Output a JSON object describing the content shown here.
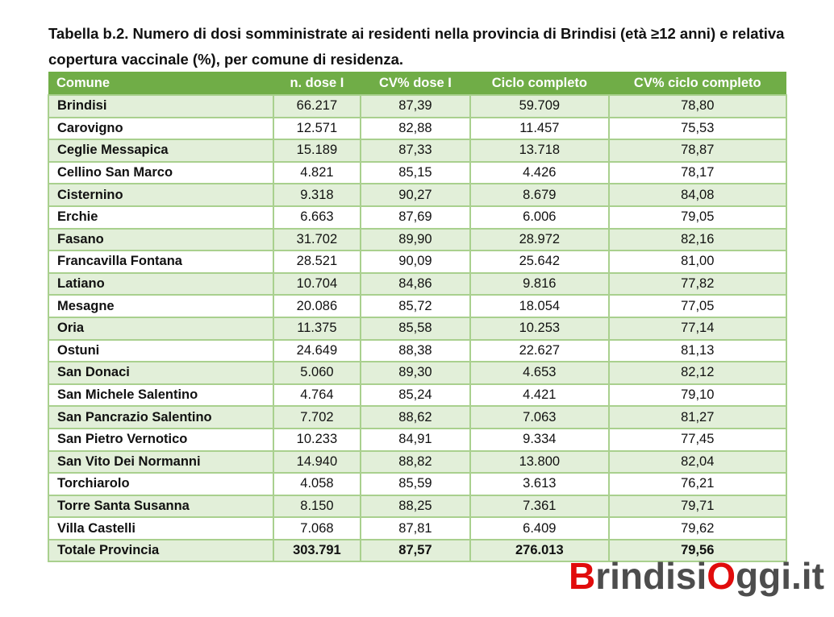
{
  "title": "Tabella b.2. Numero di dosi somministrate ai residenti nella provincia di Brindisi (età ≥12 anni) e relativa copertura vaccinale (%), per comune di residenza.",
  "headers": [
    "Comune",
    "n. dose I",
    "CV% dose I",
    "Ciclo completo",
    "CV% ciclo completo"
  ],
  "rows": [
    [
      "Brindisi",
      "66.217",
      "87,39",
      "59.709",
      "78,80"
    ],
    [
      "Carovigno",
      "12.571",
      "82,88",
      "11.457",
      "75,53"
    ],
    [
      "Ceglie Messapica",
      "15.189",
      "87,33",
      "13.718",
      "78,87"
    ],
    [
      "Cellino San Marco",
      "4.821",
      "85,15",
      "4.426",
      "78,17"
    ],
    [
      "Cisternino",
      "9.318",
      "90,27",
      "8.679",
      "84,08"
    ],
    [
      "Erchie",
      "6.663",
      "87,69",
      "6.006",
      "79,05"
    ],
    [
      "Fasano",
      "31.702",
      "89,90",
      "28.972",
      "82,16"
    ],
    [
      "Francavilla Fontana",
      "28.521",
      "90,09",
      "25.642",
      "81,00"
    ],
    [
      "Latiano",
      "10.704",
      "84,86",
      "9.816",
      "77,82"
    ],
    [
      "Mesagne",
      "20.086",
      "85,72",
      "18.054",
      "77,05"
    ],
    [
      "Oria",
      "11.375",
      "85,58",
      "10.253",
      "77,14"
    ],
    [
      "Ostuni",
      "24.649",
      "88,38",
      "22.627",
      "81,13"
    ],
    [
      "San Donaci",
      "5.060",
      "89,30",
      "4.653",
      "82,12"
    ],
    [
      "San Michele Salentino",
      "4.764",
      "85,24",
      "4.421",
      "79,10"
    ],
    [
      "San Pancrazio Salentino",
      "7.702",
      "88,62",
      "7.063",
      "81,27"
    ],
    [
      "San Pietro Vernotico",
      "10.233",
      "84,91",
      "9.334",
      "77,45"
    ],
    [
      "San Vito Dei Normanni",
      "14.940",
      "88,82",
      "13.800",
      "82,04"
    ],
    [
      "Torchiarolo",
      "4.058",
      "85,59",
      "3.613",
      "76,21"
    ],
    [
      "Torre Santa Susanna",
      "8.150",
      "88,25",
      "7.361",
      "79,71"
    ],
    [
      "Villa Castelli",
      "7.068",
      "87,81",
      "6.409",
      "79,62"
    ]
  ],
  "total": [
    "Totale Provincia",
    "303.791",
    "87,57",
    "276.013",
    "79,56"
  ],
  "watermark": {
    "b": "B",
    "rindisi": "rindisi",
    "o": "O",
    "ggi": "ggi.it"
  }
}
